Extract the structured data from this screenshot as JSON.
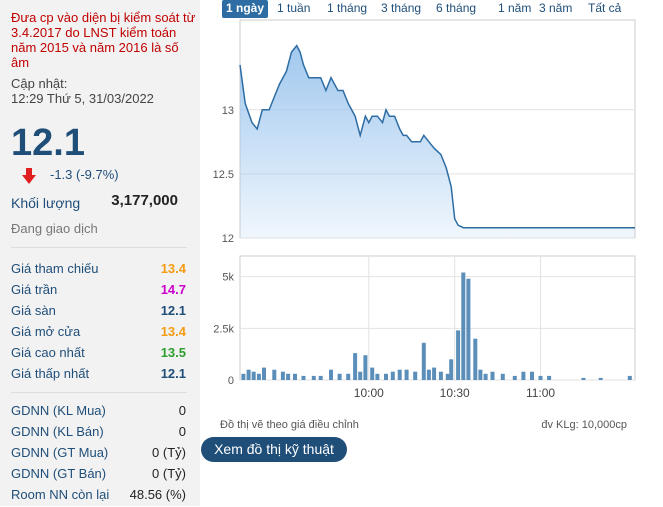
{
  "left_panel": {
    "warning": "Đưa cp vào diện bị kiểm soát từ 3.4.2017 do LNST kiểm toán năm 2015 và năm 2016 là số âm",
    "updated_label": "Cập nhật:",
    "updated_time": "12:29 Thứ 5, 31/03/2022",
    "price": "12.1",
    "change": "-1.3 (-9.7%)",
    "volume_label": "Khối lượng",
    "volume_value": "3,177,000",
    "trading_status": "Đang giao dịch",
    "prices": [
      {
        "label": "Giá tham chiếu",
        "value": "13.4",
        "color": "#f39c12"
      },
      {
        "label": "Giá trần",
        "value": "14.7",
        "color": "#cc00cc"
      },
      {
        "label": "Giá sàn",
        "value": "12.1",
        "color": "#1f4e79"
      },
      {
        "label": "Giá mở cửa",
        "value": "13.4",
        "color": "#f39c12"
      },
      {
        "label": "Giá cao nhất",
        "value": "13.5",
        "color": "#2e9e2e"
      },
      {
        "label": "Giá thấp nhất",
        "value": "12.1",
        "color": "#1f4e79"
      }
    ],
    "foreign": [
      {
        "label": "GDNN (KL Mua)",
        "value": "0"
      },
      {
        "label": "GDNN (KL Bán)",
        "value": "0"
      },
      {
        "label": "GDNN (GT Mua)",
        "value": "0 (Tỷ)"
      },
      {
        "label": "GDNN (GT Bán)",
        "value": "0 (Tỷ)"
      },
      {
        "label": "Room NN còn lại",
        "value": "48.56 (%)"
      }
    ]
  },
  "tabs": [
    "1 ngày",
    "1 tuần",
    "1 tháng",
    "3 tháng",
    "6 tháng",
    "1 năm",
    "3 năm",
    "Tất cả"
  ],
  "active_tab": 0,
  "chart_note": "Đồ thị vẽ theo giá điều chỉnh",
  "volume_unit": "đv KLg: 10,000cp",
  "tech_button": "Xem đồ thị kỹ thuật",
  "chart_data": [
    {
      "type": "area",
      "ylim": [
        12,
        13.7
      ],
      "yticks": [
        "12",
        "12.5",
        "13"
      ],
      "ytick_values": [
        12,
        12.5,
        13
      ],
      "xlim": [
        9.25,
        11.55
      ],
      "x": [
        9.25,
        9.28,
        9.32,
        9.35,
        9.38,
        9.42,
        9.45,
        9.48,
        9.52,
        9.55,
        9.58,
        9.6,
        9.62,
        9.65,
        9.68,
        9.72,
        9.75,
        9.78,
        9.82,
        9.85,
        9.88,
        9.92,
        9.95,
        9.98,
        10.0,
        10.02,
        10.05,
        10.08,
        10.1,
        10.12,
        10.15,
        10.18,
        10.2,
        10.22,
        10.25,
        10.28,
        10.3,
        10.32,
        10.35,
        10.38,
        10.42,
        10.45,
        10.48,
        10.5,
        10.52,
        10.55,
        10.58,
        10.6,
        10.65,
        10.7,
        11.55
      ],
      "y": [
        13.35,
        13.05,
        12.9,
        12.85,
        13.0,
        13.0,
        13.1,
        13.2,
        13.3,
        13.45,
        13.5,
        13.45,
        13.35,
        13.25,
        13.25,
        13.25,
        13.15,
        13.25,
        13.15,
        13.15,
        13.05,
        12.95,
        12.8,
        12.95,
        12.9,
        12.95,
        12.95,
        12.9,
        13.0,
        12.95,
        12.95,
        12.85,
        12.8,
        12.8,
        12.75,
        12.75,
        12.75,
        12.8,
        12.75,
        12.7,
        12.65,
        12.55,
        12.4,
        12.15,
        12.1,
        12.08,
        12.08,
        12.08,
        12.08,
        12.08,
        12.08
      ],
      "fill": "#9cc5ee",
      "line": "#2e6da4"
    },
    {
      "type": "bar",
      "ylim": [
        0,
        6
      ],
      "yticks": [
        "0",
        "2.5k",
        "5k"
      ],
      "ytick_values": [
        0,
        2.5,
        5
      ],
      "xticks": [
        "10:00",
        "10:30",
        "11:00"
      ],
      "xtick_values": [
        10.0,
        10.5,
        11.0
      ],
      "x": [
        9.27,
        9.3,
        9.33,
        9.36,
        9.39,
        9.45,
        9.5,
        9.53,
        9.57,
        9.62,
        9.68,
        9.72,
        9.78,
        9.83,
        9.88,
        9.92,
        9.95,
        9.98,
        10.02,
        10.05,
        10.1,
        10.14,
        10.18,
        10.22,
        10.27,
        10.32,
        10.35,
        10.38,
        10.42,
        10.46,
        10.48,
        10.52,
        10.55,
        10.58,
        10.62,
        10.65,
        10.68,
        10.72,
        10.78,
        10.85,
        10.9,
        10.95,
        11.0,
        11.05,
        11.25,
        11.35,
        11.52
      ],
      "values": [
        0.3,
        0.5,
        0.4,
        0.3,
        0.6,
        0.5,
        0.4,
        0.3,
        0.3,
        0.2,
        0.2,
        0.2,
        0.5,
        0.3,
        0.3,
        1.3,
        0.4,
        1.2,
        0.6,
        0.3,
        0.3,
        0.4,
        0.5,
        0.5,
        0.4,
        1.8,
        0.5,
        0.6,
        0.4,
        0.3,
        1.0,
        2.4,
        5.2,
        4.9,
        2.0,
        0.5,
        0.3,
        0.4,
        0.3,
        0.2,
        0.4,
        0.4,
        0.2,
        0.2,
        0.1,
        0.1,
        0.2
      ],
      "color": "#5b8fb9"
    }
  ]
}
